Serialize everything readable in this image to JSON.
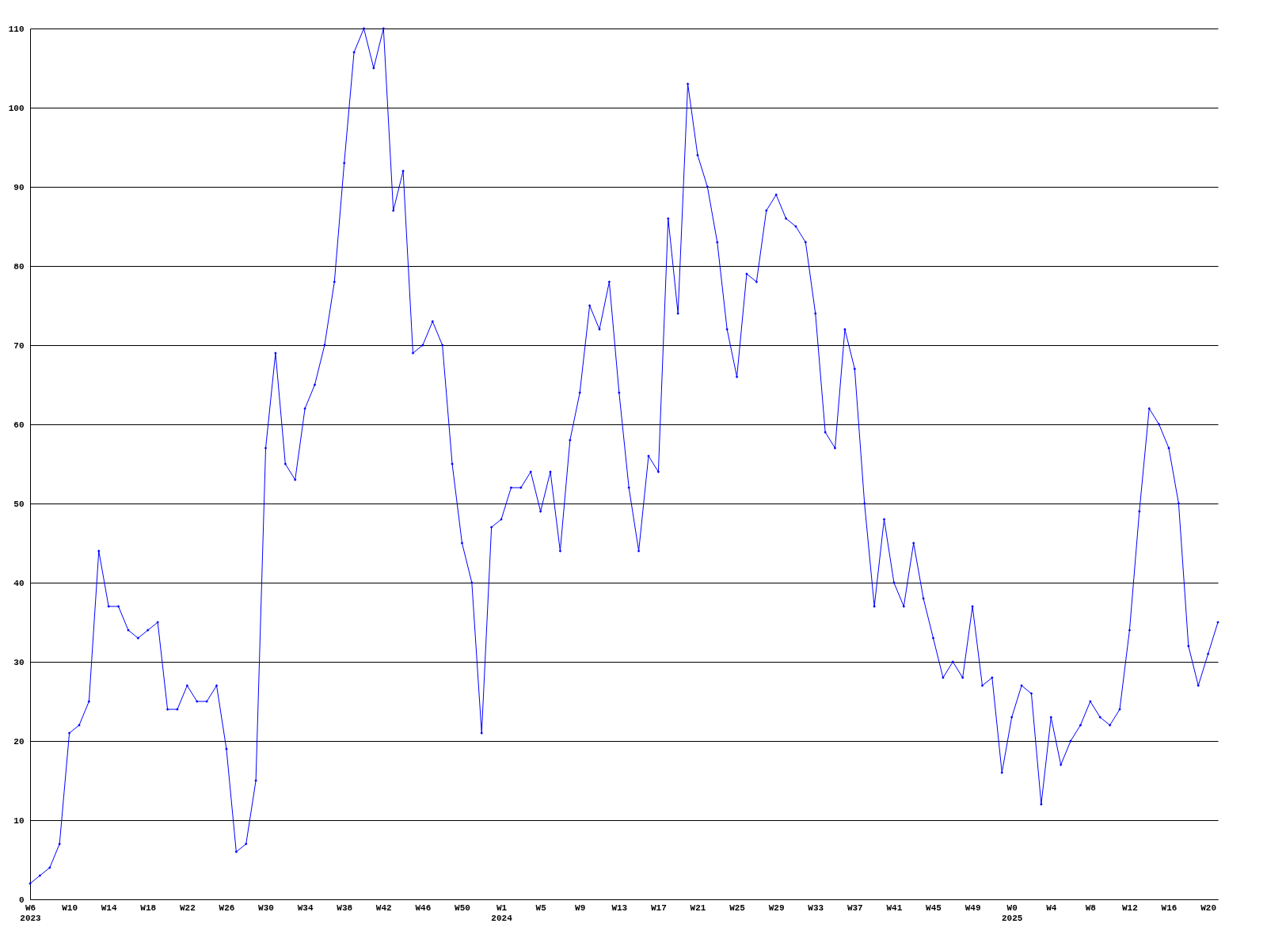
{
  "chart_data": {
    "type": "line",
    "categories": [
      "W6\n2023",
      null,
      null,
      null,
      "W10",
      null,
      null,
      null,
      "W14",
      null,
      null,
      null,
      "W18",
      null,
      null,
      null,
      "W22",
      null,
      null,
      null,
      "W26",
      null,
      null,
      null,
      "W30",
      null,
      null,
      null,
      "W34",
      null,
      null,
      null,
      "W38",
      null,
      null,
      null,
      "W42",
      null,
      null,
      null,
      "W46",
      null,
      null,
      null,
      "W50",
      null,
      null,
      null,
      "W1\n2024",
      null,
      null,
      null,
      "W5",
      null,
      null,
      null,
      "W9",
      null,
      null,
      null,
      "W13",
      null,
      null,
      null,
      "W17",
      null,
      null,
      null,
      "W21",
      null,
      null,
      null,
      "W25",
      null,
      null,
      null,
      "W29",
      null,
      null,
      null,
      "W33",
      null,
      null,
      null,
      "W37",
      null,
      null,
      null,
      "W41",
      null,
      null,
      null,
      "W45",
      null,
      null,
      null,
      "W49",
      null,
      null,
      null,
      "W0\n2025",
      null,
      null,
      null,
      "W4",
      null,
      null,
      null,
      "W8",
      null,
      null,
      null,
      "W12",
      null,
      null,
      null,
      "W16",
      null,
      null,
      null,
      "W20",
      null
    ],
    "series": [
      {
        "color": "#0000ff",
        "values": [
          2,
          3,
          4,
          7,
          21,
          22,
          25,
          44,
          37,
          37,
          34,
          33,
          34,
          35,
          24,
          24,
          27,
          25,
          25,
          27,
          19,
          6,
          7,
          15,
          57,
          69,
          55,
          53,
          62,
          65,
          70,
          78,
          93,
          107,
          110,
          105,
          110,
          87,
          92,
          69,
          70,
          73,
          70,
          55,
          45,
          40,
          21,
          47,
          48,
          52,
          52,
          54,
          49,
          54,
          44,
          58,
          64,
          75,
          72,
          78,
          64,
          52,
          44,
          56,
          54,
          86,
          74,
          103,
          94,
          90,
          83,
          72,
          66,
          79,
          78,
          87,
          89,
          86,
          85,
          83,
          74,
          59,
          57,
          72,
          67,
          50,
          37,
          48,
          40,
          37,
          45,
          38,
          33,
          28,
          30,
          28,
          37,
          27,
          28,
          16,
          23,
          27,
          26,
          12,
          23,
          17,
          20,
          22,
          25,
          23,
          22,
          24,
          34,
          49,
          62,
          60,
          57,
          50,
          32,
          27,
          31,
          35
        ]
      }
    ],
    "ylim": [
      0,
      110
    ],
    "yticks": [
      0,
      10,
      20,
      30,
      40,
      50,
      60,
      70,
      80,
      90,
      100,
      110
    ],
    "grid": "y",
    "marker": "diamond",
    "line_style": "solid"
  }
}
